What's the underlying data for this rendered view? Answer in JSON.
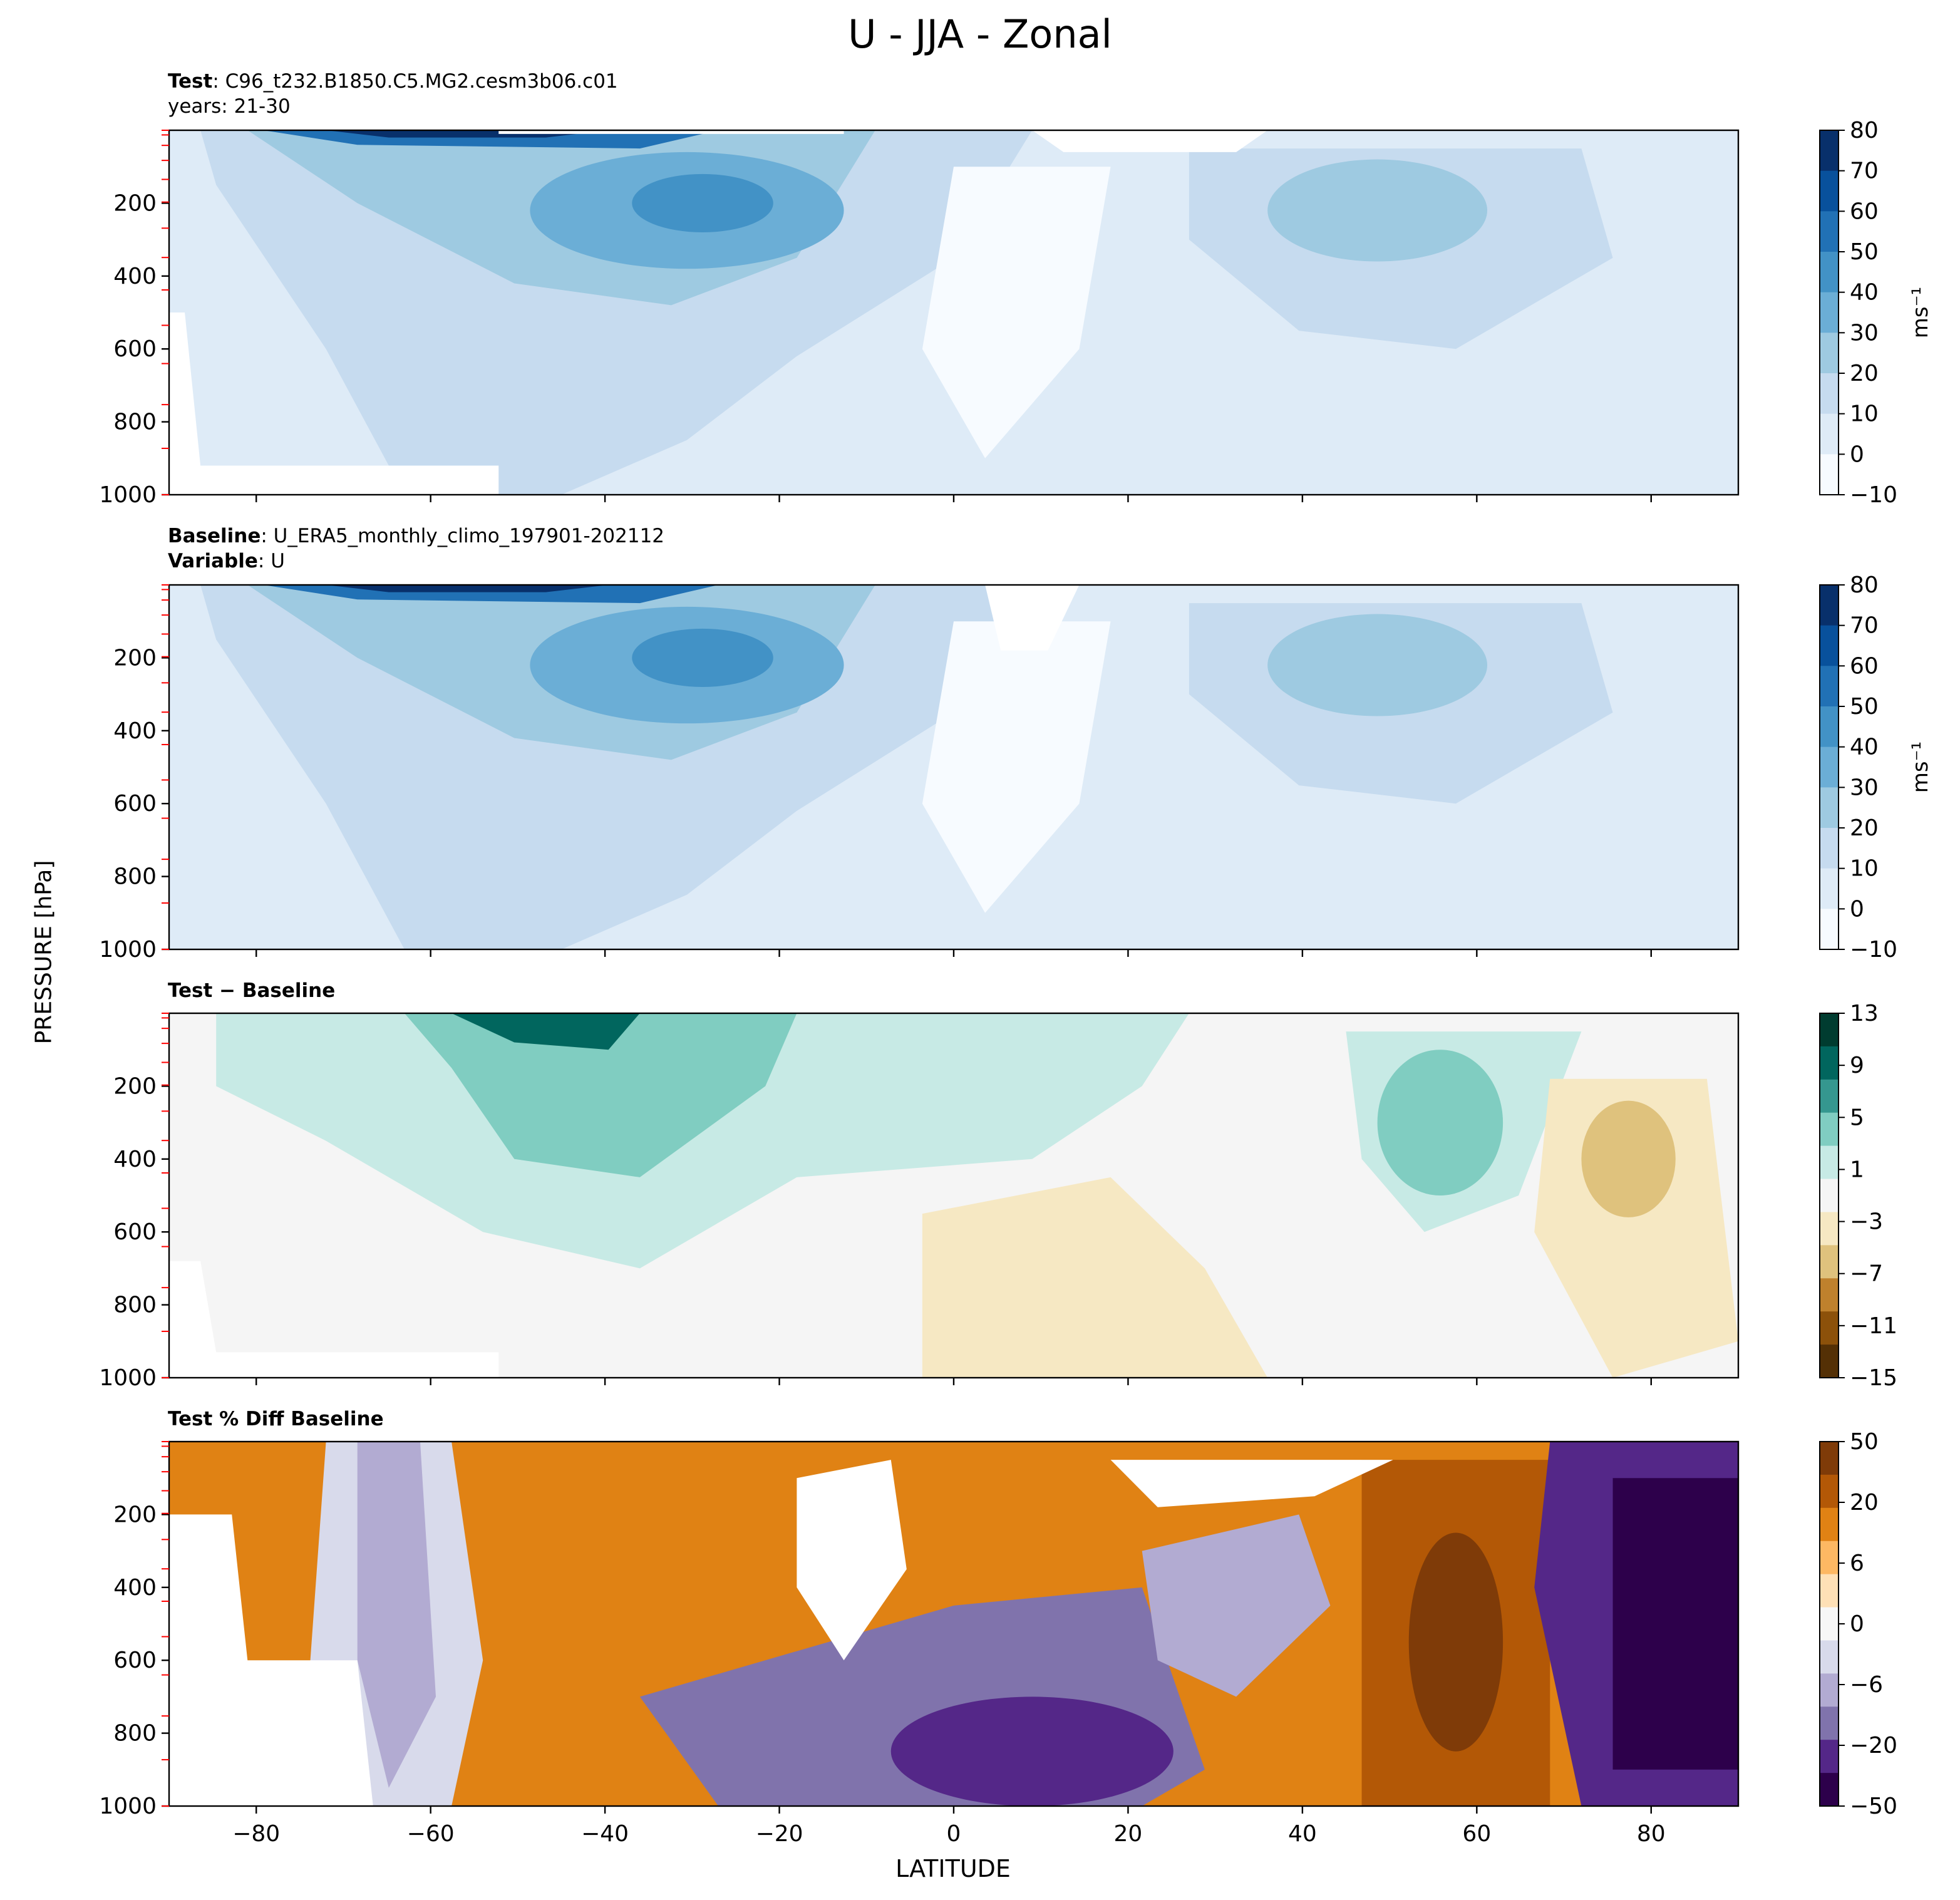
{
  "figure": {
    "title": "U - JJA - Zonal",
    "ylabel": "PRESSURE [hPa]",
    "xlabel": "LATITUDE"
  },
  "panels": [
    {
      "id": "test",
      "header_lines": [
        {
          "bold": "Test",
          "text": ": C96_t232.B1850.C5.MG2.cesm3b06.c01"
        },
        {
          "bold": "",
          "text": "years: 21-30"
        }
      ],
      "colorbar": {
        "cmap": "Blues",
        "ticks": [
          "80",
          "70",
          "60",
          "50",
          "40",
          "30",
          "20",
          "10",
          "0",
          "−10"
        ],
        "unit": "ms⁻¹"
      }
    },
    {
      "id": "baseline",
      "header_lines": [
        {
          "bold": "Baseline",
          "text": ": U_ERA5_monthly_climo_197901-202112"
        },
        {
          "bold": "Variable",
          "text": ": U"
        }
      ],
      "colorbar": {
        "cmap": "Blues",
        "ticks": [
          "80",
          "70",
          "60",
          "50",
          "40",
          "30",
          "20",
          "10",
          "0",
          "−10"
        ],
        "unit": "ms⁻¹"
      }
    },
    {
      "id": "diff",
      "header_lines": [
        {
          "bold": "Test − Baseline",
          "text": ""
        }
      ],
      "colorbar": {
        "cmap": "BrBG",
        "ticks": [
          "13",
          "9",
          "5",
          "1",
          "−3",
          "−7",
          "−11",
          "−15"
        ],
        "unit": ""
      }
    },
    {
      "id": "pctdiff",
      "header_lines": [
        {
          "bold": "Test % Diff Baseline",
          "text": ""
        }
      ],
      "colorbar": {
        "cmap": "PuOr",
        "ticks": [
          "50",
          "20",
          "6",
          "0",
          "−6",
          "−20",
          "−50"
        ],
        "unit": ""
      }
    }
  ],
  "colors": {
    "blues": [
      "#f7fbff",
      "#deebf7",
      "#c6dbef",
      "#9ecae1",
      "#6baed6",
      "#4292c6",
      "#2171b5",
      "#08519c",
      "#08306b"
    ],
    "brbg": [
      "#003c30",
      "#01665e",
      "#35978f",
      "#80cdc1",
      "#c7eae5",
      "#f5f5f5",
      "#f6e8c3",
      "#dfc27d",
      "#bf812d",
      "#8c510a",
      "#543005"
    ],
    "puor": [
      "#7f3b08",
      "#b35806",
      "#e08214",
      "#fdb863",
      "#fee0b6",
      "#f7f7f7",
      "#d8daeb",
      "#b2abd2",
      "#8073ac",
      "#542788",
      "#2d004b"
    ]
  },
  "chart_data": [
    {
      "type": "heatmap",
      "title": "Test : C96_t232.B1850.C5.MG2.cesm3b06.c01 (years: 21-30)",
      "x": "latitude",
      "xlim": [
        -90,
        90
      ],
      "y": "pressure (hPa)",
      "ylim": [
        1000,
        0
      ],
      "xticks": [
        -80,
        -60,
        -40,
        -20,
        0,
        20,
        40,
        60,
        80
      ],
      "yticks": [
        200,
        400,
        600,
        800,
        1000
      ],
      "zlim": [
        -10,
        85
      ],
      "jets": [
        {
          "lat": -30,
          "p": 200,
          "u": 45
        },
        {
          "lat": -55,
          "p": 10,
          "u": 80
        },
        {
          "lat": 45,
          "p": 210,
          "u": 28
        }
      ]
    },
    {
      "type": "heatmap",
      "title": "Baseline : U_ERA5_monthly_climo_197901-202112",
      "x": "latitude",
      "xlim": [
        -90,
        90
      ],
      "y": "pressure (hPa)",
      "ylim": [
        1000,
        0
      ],
      "zlim": [
        -10,
        85
      ],
      "jets": [
        {
          "lat": -30,
          "p": 200,
          "u": 42
        },
        {
          "lat": -55,
          "p": 10,
          "u": 80
        },
        {
          "lat": 43,
          "p": 200,
          "u": 26
        }
      ]
    },
    {
      "type": "heatmap",
      "title": "Test − Baseline",
      "x": "latitude",
      "xlim": [
        -90,
        90
      ],
      "y": "pressure (hPa)",
      "ylim": [
        1000,
        0
      ],
      "zlim": [
        -15,
        13
      ],
      "features": [
        {
          "lat": -46,
          "p": 50,
          "diff": 11
        },
        {
          "lat": -35,
          "p": 300,
          "diff": 6
        },
        {
          "lat": 53,
          "p": 400,
          "diff": 5
        },
        {
          "lat": 77,
          "p": 330,
          "diff": -4
        },
        {
          "lat": 8,
          "p": 700,
          "diff": -2
        }
      ]
    },
    {
      "type": "heatmap",
      "title": "Test % Diff Baseline",
      "x": "latitude",
      "xlim": [
        -90,
        90
      ],
      "y": "pressure (hPa)",
      "ylim": [
        1000,
        0
      ],
      "zlim": [
        -70,
        70
      ],
      "features": [
        {
          "lat": -70,
          "p": 500,
          "pct": -10
        },
        {
          "lat": -35,
          "p": 400,
          "pct": 25
        },
        {
          "lat": 10,
          "p": 800,
          "pct": -50
        },
        {
          "lat": 58,
          "p": 600,
          "pct": 40
        },
        {
          "lat": 80,
          "p": 500,
          "pct": -60
        }
      ]
    }
  ]
}
